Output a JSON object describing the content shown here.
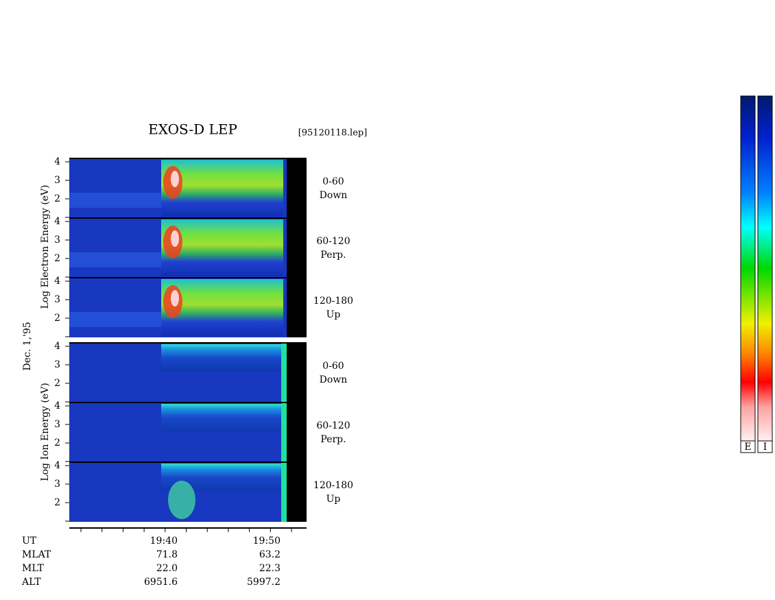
{
  "header": {
    "title": "EXOS-D LEP",
    "file": "[95120118.lep]"
  },
  "y_axis": {
    "electron": "Log Electron Energy (eV)",
    "ion": "Log Ion Energy (eV)",
    "date": "Dec. 1,'95"
  },
  "yticks": [
    "4",
    "3",
    "2"
  ],
  "panels": [
    {
      "range": "0-60",
      "direction": "Down"
    },
    {
      "range": "60-120",
      "direction": "Perp."
    },
    {
      "range": "120-180",
      "direction": "Up"
    },
    {
      "range": "0-60",
      "direction": "Down"
    },
    {
      "range": "60-120",
      "direction": "Perp."
    },
    {
      "range": "120-180",
      "direction": "Up"
    }
  ],
  "footer": {
    "rows": [
      [
        "UT",
        "19:40",
        "19:50"
      ],
      [
        "MLAT",
        "71.8",
        "63.2"
      ],
      [
        "MLT",
        "22.0",
        "22.3"
      ],
      [
        "ALT",
        "6951.6",
        "5997.2"
      ]
    ]
  },
  "colorbars": [
    "E",
    "I"
  ]
}
